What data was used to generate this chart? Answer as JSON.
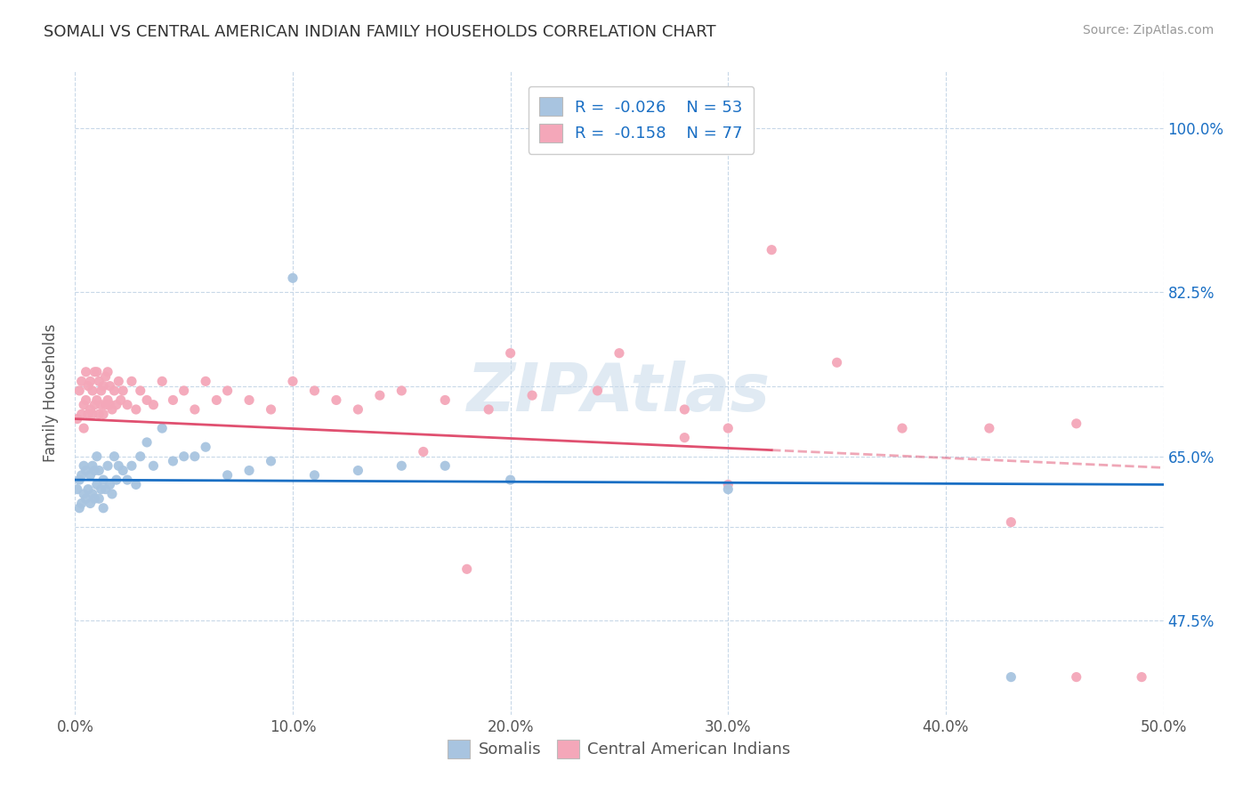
{
  "title": "SOMALI VS CENTRAL AMERICAN INDIAN FAMILY HOUSEHOLDS CORRELATION CHART",
  "source": "Source: ZipAtlas.com",
  "ylabel": "Family Households",
  "xmin": 0.0,
  "xmax": 0.5,
  "ymin": 0.375,
  "ymax": 1.06,
  "ytick_positions": [
    0.475,
    0.575,
    0.65,
    0.725,
    0.825,
    1.0
  ],
  "ytick_labels": [
    "47.5%",
    "",
    "65.0%",
    "",
    "82.5%",
    "100.0%"
  ],
  "xtick_positions": [
    0.0,
    0.1,
    0.2,
    0.3,
    0.4,
    0.5
  ],
  "xtick_labels": [
    "0.0%",
    "10.0%",
    "20.0%",
    "30.0%",
    "40.0%",
    "50.0%"
  ],
  "watermark": "ZIPAtlas",
  "legend_r1": "-0.026",
  "legend_n1": "53",
  "legend_r2": "-0.158",
  "legend_n2": "77",
  "legend_label1": "Somalis",
  "legend_label2": "Central American Indians",
  "somali_color": "#a8c4e0",
  "central_color": "#f4a7b9",
  "trendline_somali_color": "#1a6fc4",
  "trendline_central_color": "#e05070",
  "background_color": "#ffffff",
  "grid_color": "#c8d8e8",
  "somali_x": [
    0.001,
    0.002,
    0.002,
    0.003,
    0.003,
    0.004,
    0.004,
    0.005,
    0.005,
    0.006,
    0.007,
    0.007,
    0.008,
    0.008,
    0.009,
    0.009,
    0.01,
    0.01,
    0.011,
    0.011,
    0.012,
    0.013,
    0.013,
    0.014,
    0.015,
    0.016,
    0.017,
    0.018,
    0.019,
    0.02,
    0.022,
    0.024,
    0.026,
    0.028,
    0.03,
    0.033,
    0.036,
    0.04,
    0.045,
    0.05,
    0.055,
    0.06,
    0.07,
    0.08,
    0.09,
    0.1,
    0.11,
    0.13,
    0.15,
    0.17,
    0.2,
    0.3,
    0.43
  ],
  "somali_y": [
    0.615,
    0.595,
    0.625,
    0.6,
    0.63,
    0.61,
    0.64,
    0.605,
    0.635,
    0.615,
    0.6,
    0.63,
    0.61,
    0.64,
    0.605,
    0.635,
    0.62,
    0.65,
    0.605,
    0.635,
    0.615,
    0.595,
    0.625,
    0.615,
    0.64,
    0.62,
    0.61,
    0.65,
    0.625,
    0.64,
    0.635,
    0.625,
    0.64,
    0.62,
    0.65,
    0.665,
    0.64,
    0.68,
    0.645,
    0.65,
    0.65,
    0.66,
    0.63,
    0.635,
    0.645,
    0.84,
    0.63,
    0.635,
    0.64,
    0.64,
    0.625,
    0.615,
    0.415
  ],
  "central_x": [
    0.001,
    0.002,
    0.003,
    0.003,
    0.004,
    0.004,
    0.005,
    0.005,
    0.006,
    0.006,
    0.007,
    0.007,
    0.008,
    0.008,
    0.009,
    0.009,
    0.01,
    0.01,
    0.011,
    0.011,
    0.012,
    0.012,
    0.013,
    0.013,
    0.014,
    0.014,
    0.015,
    0.015,
    0.016,
    0.016,
    0.017,
    0.018,
    0.019,
    0.02,
    0.021,
    0.022,
    0.024,
    0.026,
    0.028,
    0.03,
    0.033,
    0.036,
    0.04,
    0.045,
    0.05,
    0.055,
    0.06,
    0.065,
    0.07,
    0.08,
    0.09,
    0.1,
    0.11,
    0.12,
    0.13,
    0.14,
    0.15,
    0.17,
    0.19,
    0.21,
    0.24,
    0.28,
    0.3,
    0.32,
    0.35,
    0.38,
    0.43,
    0.46,
    0.49,
    0.25,
    0.2,
    0.18,
    0.16,
    0.28,
    0.3,
    0.42,
    0.46
  ],
  "central_y": [
    0.69,
    0.72,
    0.695,
    0.73,
    0.705,
    0.68,
    0.71,
    0.74,
    0.695,
    0.725,
    0.7,
    0.73,
    0.695,
    0.72,
    0.705,
    0.74,
    0.71,
    0.74,
    0.695,
    0.73,
    0.705,
    0.72,
    0.695,
    0.725,
    0.705,
    0.735,
    0.71,
    0.74,
    0.705,
    0.725,
    0.7,
    0.72,
    0.705,
    0.73,
    0.71,
    0.72,
    0.705,
    0.73,
    0.7,
    0.72,
    0.71,
    0.705,
    0.73,
    0.71,
    0.72,
    0.7,
    0.73,
    0.71,
    0.72,
    0.71,
    0.7,
    0.73,
    0.72,
    0.71,
    0.7,
    0.715,
    0.72,
    0.71,
    0.7,
    0.715,
    0.72,
    0.7,
    0.68,
    0.87,
    0.75,
    0.68,
    0.58,
    0.685,
    0.415,
    0.76,
    0.76,
    0.53,
    0.655,
    0.67,
    0.62,
    0.68,
    0.415
  ],
  "trendline_somali_x0": 0.0,
  "trendline_somali_x1": 0.5,
  "trendline_somali_y0": 0.625,
  "trendline_somali_y1": 0.62,
  "trendline_central_x0": 0.0,
  "trendline_central_x1": 0.5,
  "trendline_central_y0": 0.69,
  "trendline_central_y1": 0.638,
  "trendline_central_solid_x1": 0.32
}
